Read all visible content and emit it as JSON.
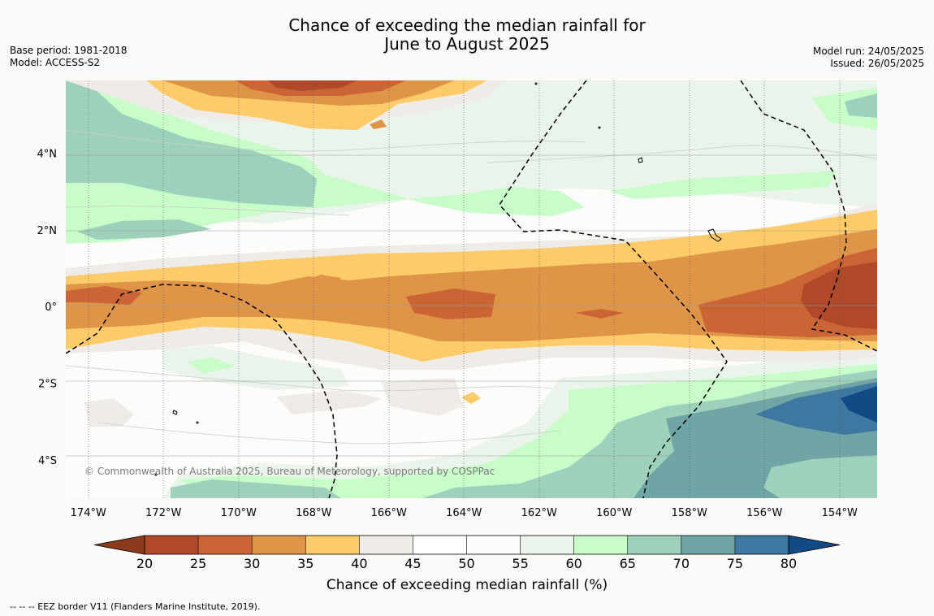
{
  "title": {
    "line1": "Chance of exceeding the median rainfall for",
    "line2": "June to August 2025"
  },
  "meta_left": {
    "base_period": "Base period: 1981-2018",
    "model": "Model: ACCESS-S2"
  },
  "meta_right": {
    "model_run": "Model run: 24/05/2025",
    "issued": "Issued: 26/05/2025"
  },
  "copyright": "© Commonwealth of Australia 2025, Bureau of Meteorology, supported by COSPPac",
  "lat_ticks": [
    "4°N",
    "2°N",
    "0°",
    "2°S",
    "4°S"
  ],
  "lat_values": [
    4,
    2,
    0,
    -2,
    -4
  ],
  "lon_ticks": [
    "174°W",
    "172°W",
    "170°W",
    "168°W",
    "166°W",
    "164°W",
    "162°W",
    "160°W",
    "158°W",
    "156°W",
    "154°W"
  ],
  "lon_values": [
    -174,
    -172,
    -170,
    -168,
    -166,
    -164,
    -162,
    -160,
    -158,
    -156,
    -154
  ],
  "extent": {
    "lon": [
      -174.6,
      -153.0
    ],
    "lat": [
      -5.0,
      5.9
    ]
  },
  "colorbar": {
    "label": "Chance of exceeding median rainfall (%)",
    "ticks": [
      "20",
      "25",
      "30",
      "35",
      "40",
      "45",
      "50",
      "55",
      "60",
      "65",
      "70",
      "75",
      "80"
    ],
    "under_color": "#8b3a1c",
    "over_color": "#134a85",
    "colors": [
      "#b0492a",
      "#cb6536",
      "#df9547",
      "#fecb6a",
      "#efebe6",
      "#ffffff",
      "#fcfdfb",
      "#eaf4ea",
      "#c8fcc8",
      "#9ed1bb",
      "#70a5a6",
      "#3e77a0"
    ]
  },
  "footnote": "--  --  -- EEZ border V11 (Flanders Marine Institute, 2019)."
}
